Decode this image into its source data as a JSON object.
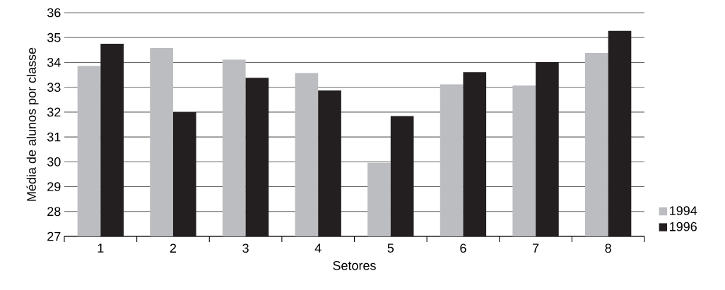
{
  "chart_data": {
    "type": "bar",
    "xlabel": "Setores",
    "ylabel": "Média de alunos por classe",
    "categories": [
      "1",
      "2",
      "3",
      "4",
      "5",
      "6",
      "7",
      "8"
    ],
    "series": [
      {
        "name": "1994",
        "color": "#bcbdc0",
        "values": [
          33.86,
          34.58,
          34.11,
          33.57,
          29.96,
          33.12,
          33.07,
          34.38
        ]
      },
      {
        "name": "1996",
        "color": "#231f20",
        "values": [
          34.75,
          32.0,
          33.38,
          32.87,
          31.84,
          33.61,
          34.01,
          35.27
        ]
      }
    ],
    "ylim": [
      27,
      36
    ],
    "yticks": [
      27,
      28,
      29,
      30,
      31,
      32,
      33,
      34,
      35,
      36
    ],
    "grid": "y",
    "legend": "right"
  }
}
